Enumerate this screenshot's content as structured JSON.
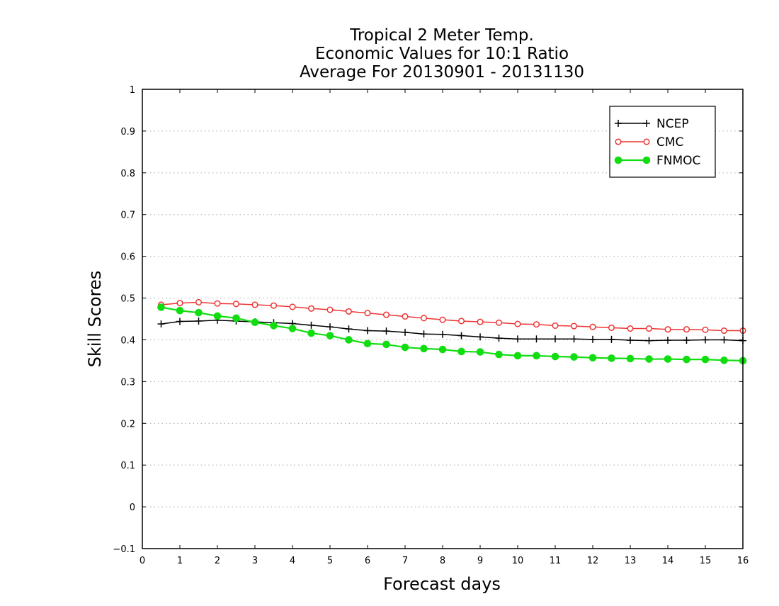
{
  "chart_data": {
    "type": "line",
    "title": [
      "Tropical 2 Meter Temp.",
      "Economic Values for 10:1 Ratio",
      "Average For 20130901 - 20131130"
    ],
    "xlabel": "Forecast days",
    "ylabel": "Skill Scores",
    "xlim": [
      0,
      16
    ],
    "ylim": [
      -0.1,
      1
    ],
    "x_ticks": [
      "0",
      "1",
      "2",
      "3",
      "4",
      "5",
      "6",
      "7",
      "8",
      "9",
      "10",
      "11",
      "12",
      "13",
      "14",
      "15",
      "16"
    ],
    "y_ticks": [
      "−0.1",
      "0",
      "0.1",
      "0.2",
      "0.3",
      "0.4",
      "0.5",
      "0.6",
      "0.7",
      "0.8",
      "0.9",
      "1"
    ],
    "grid": true,
    "legend_position": "top-right",
    "x": [
      0.5,
      1,
      1.5,
      2,
      2.5,
      3,
      3.5,
      4,
      4.5,
      5,
      5.5,
      6,
      6.5,
      7,
      7.5,
      8,
      8.5,
      9,
      9.5,
      10,
      10.5,
      11,
      11.5,
      12,
      12.5,
      13,
      13.5,
      14,
      14.5,
      15,
      15.5,
      16
    ],
    "series": [
      {
        "name": "NCEP",
        "color": "#000000",
        "marker": "plus",
        "values": [
          0.438,
          0.444,
          0.445,
          0.447,
          0.445,
          0.443,
          0.441,
          0.439,
          0.435,
          0.431,
          0.426,
          0.422,
          0.421,
          0.418,
          0.414,
          0.413,
          0.41,
          0.407,
          0.404,
          0.402,
          0.402,
          0.402,
          0.402,
          0.401,
          0.401,
          0.399,
          0.398,
          0.399,
          0.399,
          0.4,
          0.4,
          0.398
        ]
      },
      {
        "name": "CMC",
        "color": "#ee3333",
        "marker": "open-circle",
        "values": [
          0.484,
          0.488,
          0.49,
          0.487,
          0.486,
          0.484,
          0.482,
          0.479,
          0.475,
          0.472,
          0.468,
          0.464,
          0.46,
          0.456,
          0.452,
          0.448,
          0.445,
          0.443,
          0.441,
          0.438,
          0.437,
          0.434,
          0.433,
          0.431,
          0.429,
          0.427,
          0.427,
          0.425,
          0.425,
          0.424,
          0.422,
          0.422
        ]
      },
      {
        "name": "FNMOC",
        "color": "#11dd11",
        "marker": "filled-circle",
        "values": [
          0.478,
          0.47,
          0.465,
          0.457,
          0.452,
          0.442,
          0.434,
          0.427,
          0.416,
          0.41,
          0.4,
          0.391,
          0.389,
          0.382,
          0.379,
          0.377,
          0.372,
          0.371,
          0.365,
          0.362,
          0.362,
          0.36,
          0.359,
          0.357,
          0.356,
          0.355,
          0.354,
          0.354,
          0.353,
          0.353,
          0.351,
          0.35
        ]
      }
    ]
  }
}
